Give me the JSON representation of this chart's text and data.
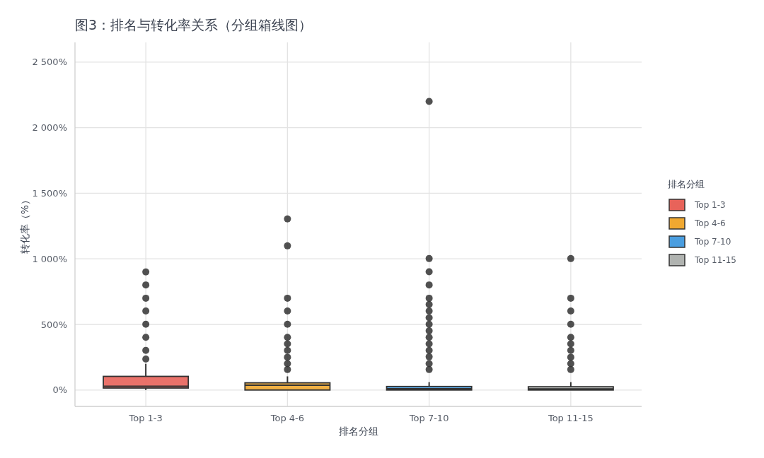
{
  "chart_data": {
    "type": "box",
    "title": "图3：排名与转化率关系（分组箱线图）",
    "xlabel": "排名分组",
    "ylabel": "转化率（%）",
    "legend_title": "排名分组",
    "categories": [
      "Top 1-3",
      "Top 4-6",
      "Top 7-10",
      "Top 11-15"
    ],
    "series": [
      {
        "name": "Top 1-3",
        "color": "#e8635a",
        "boxes": [
          {
            "low": 0,
            "q1": 15,
            "median": 29,
            "q3": 104,
            "high": 200,
            "outliers": [
              236,
              302,
              402,
              501,
              602,
              700,
              801,
              900
            ]
          },
          null,
          null,
          null
        ]
      },
      {
        "name": "Top 4-6",
        "color": "#f0a830",
        "boxes": [
          null,
          {
            "low": 0,
            "q1": 0,
            "median": 36,
            "q3": 55,
            "high": 104,
            "outliers": [
              156,
              201,
              250,
              302,
              352,
              402,
              501,
              602,
              700,
              1099,
              1304
            ]
          },
          null,
          null
        ]
      },
      {
        "name": "Top 7-10",
        "color": "#4a9ee0",
        "boxes": [
          null,
          null,
          {
            "low": 0,
            "q1": 0,
            "median": 10,
            "q3": 27,
            "high": 60,
            "outliers": [
              156,
              201,
              253,
              302,
              352,
              402,
              451,
              501,
              551,
              602,
              652,
              700,
              801,
              901,
              1002,
              2200
            ]
          },
          null
        ]
      },
      {
        "name": "Top 11-15",
        "color": "#b0b3b0",
        "boxes": [
          null,
          null,
          null,
          {
            "low": 0,
            "q1": 0,
            "median": 8,
            "q3": 25,
            "high": 60,
            "outliers": [
              156,
              201,
              250,
              302,
              352,
              402,
              501,
              602,
              700,
              1002
            ]
          }
        ]
      }
    ],
    "ylim": [
      -125,
      2650
    ],
    "yticks": [
      {
        "value": 0,
        "label": "0%"
      },
      {
        "value": 500,
        "label": "500%"
      },
      {
        "value": 1000,
        "label": "1 000%"
      },
      {
        "value": 1500,
        "label": "1 500%"
      },
      {
        "value": 2000,
        "label": "2 000%"
      },
      {
        "value": 2500,
        "label": "2 500%"
      }
    ],
    "grid": true,
    "legend": "right"
  }
}
